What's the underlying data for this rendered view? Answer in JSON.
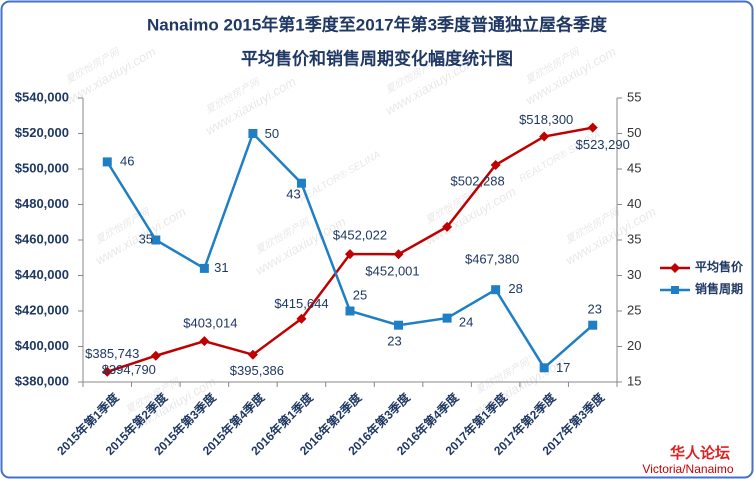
{
  "chart_data": {
    "type": "line",
    "title": "Nanaimo 2015年第1季度至2017年第3季度普通独立屋各季度",
    "subtitle": "平均售价和销售周期变化幅度统计图",
    "categories": [
      "2015年第1季度",
      "2015年第2季度",
      "2015年第3季度",
      "2015年第4季度",
      "2016年第1季度",
      "2016年第2季度",
      "2016年第3季度",
      "2016年第4季度",
      "2017年第1季度",
      "2017年第2季度",
      "2017年第3季度"
    ],
    "series": [
      {
        "name": "平均售价",
        "color": "#c00000",
        "marker": "diamond",
        "values": [
          385743,
          394790,
          403014,
          395386,
          415644,
          452022,
          452001,
          467380,
          502288,
          518300,
          523290
        ],
        "value_labels": [
          "$385,743",
          "$394,790",
          "$403,014",
          "$395,386",
          "$415,644",
          "$452,022",
          "$452,001",
          "$467,380",
          "$502,288",
          "$518,300",
          "$523,290"
        ]
      },
      {
        "name": "销售周期",
        "color": "#1f7fc4",
        "marker": "square",
        "axis": "y2",
        "values": [
          46,
          35,
          31,
          50,
          43,
          25,
          23,
          24,
          28,
          17,
          23
        ]
      }
    ],
    "ylim": [
      380000,
      540000
    ],
    "yticks": [
      {
        "value": 380000,
        "label": "$380,000"
      },
      {
        "value": 400000,
        "label": "$400,000"
      },
      {
        "value": 420000,
        "label": "$420,000"
      },
      {
        "value": 440000,
        "label": "$440,000"
      },
      {
        "value": 460000,
        "label": "$460,000"
      },
      {
        "value": 480000,
        "label": "$480,000"
      },
      {
        "value": 500000,
        "label": "$500,000"
      },
      {
        "value": 520000,
        "label": "$520,000"
      },
      {
        "value": 540000,
        "label": "$540,000"
      }
    ],
    "y2lim": [
      15,
      55
    ],
    "y2ticks": [
      15,
      20,
      25,
      30,
      35,
      40,
      45,
      50,
      55
    ],
    "legend": "right",
    "watermark": {
      "url": "www.xiaxiuyi.com",
      "name": "夏欣怡房产网",
      "realtor": "REALTOR® SELINA"
    },
    "footer": [
      "华人论坛",
      "Victoria/Nanaimo"
    ]
  }
}
